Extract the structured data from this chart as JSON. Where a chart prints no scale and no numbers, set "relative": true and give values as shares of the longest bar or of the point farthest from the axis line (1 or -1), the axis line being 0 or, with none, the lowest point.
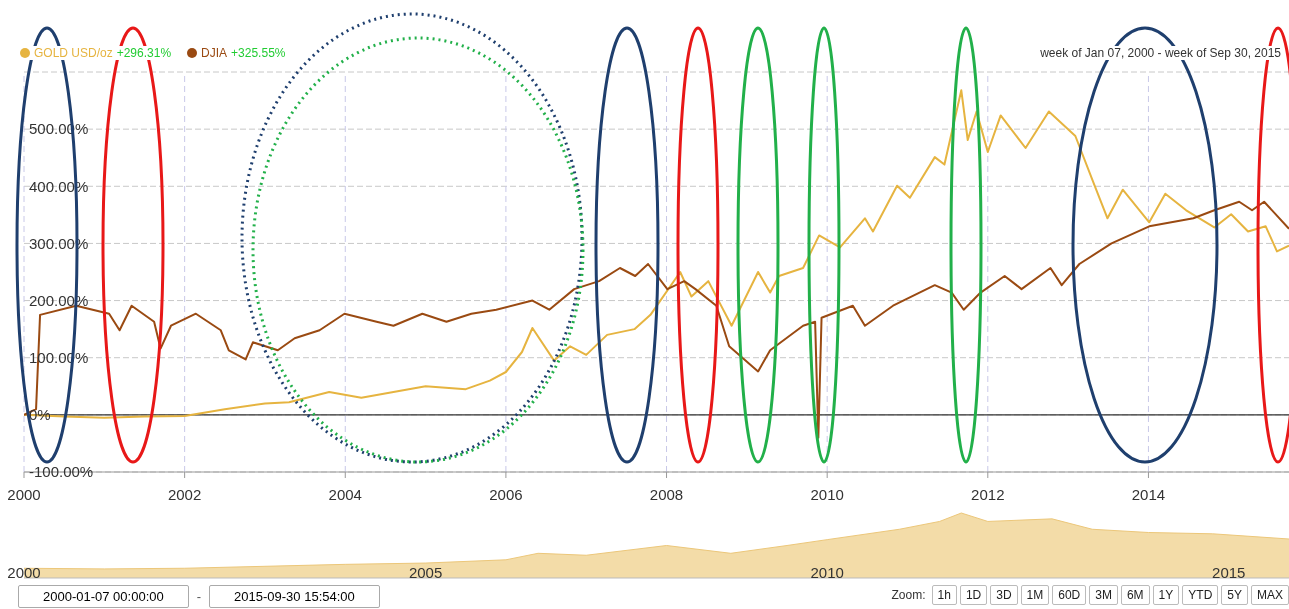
{
  "chart_data": [
    {
      "type": "line",
      "legend": "top left",
      "grid": true,
      "xlim": [
        2000,
        2015.75
      ],
      "xticks": [
        2000,
        2002,
        2004,
        2006,
        2008,
        2010,
        2012,
        2014
      ],
      "ylim": [
        -100,
        600
      ],
      "yticks": [
        {
          "value": -100,
          "label": "-100.00%"
        },
        {
          "value": 0,
          "label": "0%"
        },
        {
          "value": 100,
          "label": "100.00%"
        },
        {
          "value": 200,
          "label": "200.00%"
        },
        {
          "value": 300,
          "label": "300.00%"
        },
        {
          "value": 400,
          "label": "400.00%"
        },
        {
          "value": 500,
          "label": "500.00%"
        },
        {
          "value": 600,
          "label": null
        }
      ],
      "ref_lines": [
        {
          "axis": "y",
          "value": 0,
          "color": "#333333"
        }
      ],
      "annotations": [
        "+296.31%",
        "+325.55%",
        "week of Jan 07, 2000 - week of Sep 30, 2015"
      ],
      "series": [
        {
          "name": "GOLD USD/oz",
          "color": "#e6b440",
          "x": [
            2000,
            2000.5,
            2001,
            2001.5,
            2002,
            2002.5,
            2003,
            2003.3,
            2003.8,
            2004.2,
            2004.6,
            2005,
            2005.5,
            2005.8,
            2006,
            2006.2,
            2006.33,
            2006.6,
            2006.8,
            2007,
            2007.26,
            2007.6,
            2007.8,
            2008.17,
            2008.31,
            2008.52,
            2008.81,
            2009.14,
            2009.29,
            2009.4,
            2009.7,
            2009.9,
            2010.16,
            2010.47,
            2010.57,
            2010.87,
            2011.03,
            2011.34,
            2011.46,
            2011.67,
            2011.75,
            2011.86,
            2012,
            2012.16,
            2012.47,
            2012.76,
            2013.09,
            2013.33,
            2013.49,
            2013.68,
            2014.01,
            2014.21,
            2014.47,
            2014.82,
            2015.03,
            2015.24,
            2015.46,
            2015.6,
            2015.75
          ],
          "values": [
            0,
            -3,
            -5,
            -3,
            -2,
            10,
            20,
            22,
            40,
            30,
            40,
            50,
            45,
            60,
            75,
            110,
            152,
            95,
            120,
            105,
            140,
            150,
            175,
            250,
            207,
            234,
            156,
            250,
            214,
            243,
            257,
            314,
            293,
            344,
            321,
            401,
            380,
            451,
            438,
            568,
            481,
            531,
            460,
            524,
            467,
            531,
            488,
            401,
            344,
            394,
            337,
            387,
            358,
            328,
            351,
            321,
            330,
            286,
            296.31
          ]
        },
        {
          "name": "DJIA",
          "color": "#9a4a12",
          "x": [
            2000,
            2000.15,
            2000.2,
            2000.65,
            2001.06,
            2001.19,
            2001.34,
            2001.62,
            2001.7,
            2001.83,
            2002.14,
            2002.45,
            2002.55,
            2002.76,
            2002.85,
            2003.16,
            2003.37,
            2003.68,
            2003.99,
            2004.39,
            2004.6,
            2004.96,
            2005.26,
            2005.57,
            2005.88,
            2006.33,
            2006.54,
            2006.85,
            2007.16,
            2007.42,
            2007.61,
            2007.77,
            2008.01,
            2008.22,
            2008.36,
            2008.62,
            2008.78,
            2009.14,
            2009.29,
            2009.7,
            2009.85,
            2009.89,
            2009.93,
            2010.32,
            2010.47,
            2010.82,
            2011.34,
            2011.55,
            2011.7,
            2011.91,
            2012.21,
            2012.42,
            2012.78,
            2012.92,
            2013.14,
            2013.54,
            2014.01,
            2014.56,
            2014.82,
            2015.13,
            2015.29,
            2015.44,
            2015.75
          ],
          "values": [
            0,
            10,
            175,
            191,
            177,
            148,
            191,
            163,
            116,
            156,
            177,
            148,
            113,
            97,
            127,
            113,
            134,
            148,
            177,
            163,
            156,
            177,
            163,
            177,
            184,
            200,
            184,
            220,
            234,
            257,
            243,
            264,
            220,
            234,
            220,
            191,
            120,
            76,
            113,
            156,
            163,
            -40,
            170,
            191,
            156,
            191,
            227,
            214,
            184,
            214,
            243,
            220,
            257,
            227,
            264,
            300,
            330,
            344,
            358,
            373,
            358,
            373,
            325.55
          ]
        }
      ]
    },
    {
      "type": "area",
      "relative": true,
      "xlim": [
        2000,
        2015.75
      ],
      "xticks": [
        2000,
        2005,
        2010,
        2015
      ],
      "tick_labels": "x",
      "annotations": [
        "2000-01-07 00:00:00",
        "-",
        "2015-09-30 15:54:00",
        "Zoom:",
        "1h",
        "1D",
        "3D",
        "1M",
        "60D",
        "3M",
        "6M",
        "1Y",
        "YTD",
        "5Y",
        "MAX"
      ],
      "series": [
        {
          "color": "#f3dca8",
          "x": [
            2000,
            2001,
            2002,
            2003,
            2004,
            2005,
            2006,
            2006.4,
            2007,
            2008,
            2008.8,
            2009.5,
            2010,
            2010.9,
            2011.4,
            2011.67,
            2012,
            2012.8,
            2013.3,
            2014,
            2014.8,
            2015.75
          ],
          "values": [
            0.15,
            0.14,
            0.15,
            0.18,
            0.21,
            0.23,
            0.28,
            0.38,
            0.35,
            0.5,
            0.38,
            0.5,
            0.59,
            0.75,
            0.87,
            1,
            0.87,
            0.91,
            0.75,
            0.7,
            0.68,
            0.6
          ]
        }
      ]
    }
  ]
}
